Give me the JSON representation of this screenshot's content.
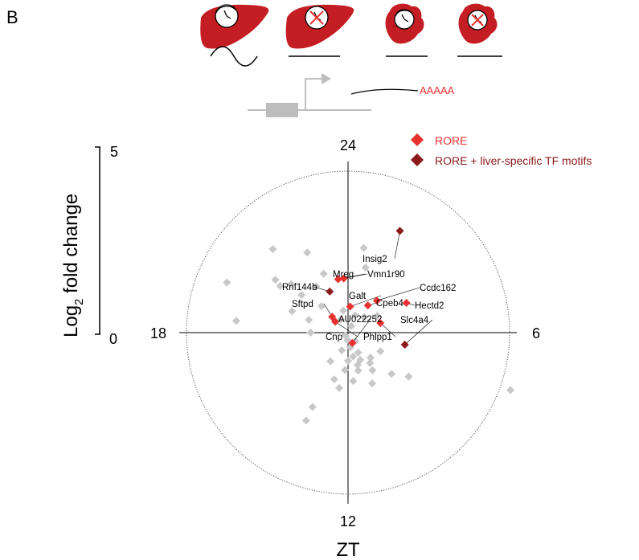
{
  "panel_label": "B",
  "schematic": {
    "transcript_tail": "AAAAA"
  },
  "colors": {
    "rore": "#e8312f",
    "rore_liver": "#8b1a1a",
    "other": "#c8c8c8",
    "organ": "#c41e24"
  },
  "chart_data": {
    "type": "scatter",
    "coordinate_system": "polar",
    "angular_axis": {
      "label": "ZT",
      "ticks": [
        "24",
        "6",
        "12",
        "18"
      ],
      "direction": "clockwise",
      "zero_at": "top"
    },
    "radial_axis": {
      "label_pre": "Log",
      "label_sub": "2",
      "label_post": " fold change",
      "range": [
        0,
        5
      ],
      "tick_labels": [
        "5",
        "0"
      ]
    },
    "legend": {
      "placement": "top-right",
      "entries": [
        {
          "label": "RORE",
          "color": "#e8312f"
        },
        {
          "label": "RORE + liver-specific TF motifs",
          "color": "#8b1a1a"
        }
      ]
    },
    "series": [
      {
        "name": "RORE",
        "points": [
          {
            "gene": "Vmn1r90",
            "zt": 23.7,
            "lfc": 1.45
          },
          {
            "gene": "Mreg",
            "zt": 23.3,
            "lfc": 1.45
          },
          {
            "gene": "Ccdc162",
            "zt": 2.8,
            "lfc": 1.15
          },
          {
            "gene": "Cpeb4",
            "zt": 2.4,
            "lfc": 0.9
          },
          {
            "gene": "Hectd2",
            "zt": 4.2,
            "lfc": 1.75
          },
          {
            "gene": "Galt",
            "zt": 0.3,
            "lfc": 0.7
          },
          {
            "gene": "Sftpd",
            "zt": 21.0,
            "lfc": 0.6
          },
          {
            "gene": "AU022252",
            "zt": 10.5,
            "lfc": 0.3
          },
          {
            "gene": "Cnp",
            "zt": 20.7,
            "lfc": 0.45
          },
          {
            "gene": "Phlpp1",
            "zt": 4.9,
            "lfc": 0.9
          }
        ]
      },
      {
        "name": "RORE + liver-specific TF motifs",
        "points": [
          {
            "gene": "Insig2",
            "zt": 1.8,
            "lfc": 3.05
          },
          {
            "gene": "Rnf144b",
            "zt": 22.4,
            "lfc": 1.2
          },
          {
            "gene": "Slc4a4",
            "zt": 6.8,
            "lfc": 1.55
          }
        ]
      },
      {
        "name": "other",
        "points": [
          {
            "zt": 21.2,
            "lfc": 3.0
          },
          {
            "zt": 20.3,
            "lfc": 2.2
          },
          {
            "zt": 20.7,
            "lfc": 2.0
          },
          {
            "zt": 19.5,
            "lfc": 3.5
          },
          {
            "zt": 18.4,
            "lfc": 3.0
          },
          {
            "zt": 20.4,
            "lfc": 2.4
          },
          {
            "zt": 18.0,
            "lfc": 1.0
          },
          {
            "zt": 19.4,
            "lfc": 1.6
          },
          {
            "zt": 22.2,
            "lfc": 2.4
          },
          {
            "zt": 21.0,
            "lfc": 1.0
          },
          {
            "zt": 0.7,
            "lfc": 2.3
          },
          {
            "zt": 1.0,
            "lfc": 1.8
          },
          {
            "zt": 22.5,
            "lfc": 1.7
          },
          {
            "zt": 21.7,
            "lfc": 1.5
          },
          {
            "zt": 19.2,
            "lfc": 1.1
          },
          {
            "zt": 20.6,
            "lfc": 1.6
          },
          {
            "zt": 23.2,
            "lfc": 0.6
          },
          {
            "zt": 1.5,
            "lfc": 0.5
          },
          {
            "zt": 3.1,
            "lfc": 0.6
          },
          {
            "zt": 4.0,
            "lfc": 0.9
          },
          {
            "zt": 1.8,
            "lfc": 0.2
          },
          {
            "zt": 22.1,
            "lfc": 0.4
          },
          {
            "zt": 15.0,
            "lfc": 0.1
          },
          {
            "zt": 12.3,
            "lfc": 0.2
          },
          {
            "zt": 13.3,
            "lfc": 0.5
          },
          {
            "zt": 11.4,
            "lfc": 0.4
          },
          {
            "zt": 9.3,
            "lfc": 0.3
          },
          {
            "zt": 10.2,
            "lfc": 0.6
          },
          {
            "zt": 11.2,
            "lfc": 0.65
          },
          {
            "zt": 12.0,
            "lfc": 0.75
          },
          {
            "zt": 9.2,
            "lfc": 0.9
          },
          {
            "zt": 10.9,
            "lfc": 0.9
          },
          {
            "zt": 9.8,
            "lfc": 1.2
          },
          {
            "zt": 10.3,
            "lfc": 1.5
          },
          {
            "zt": 8.9,
            "lfc": 1.6
          },
          {
            "zt": 11.0,
            "lfc": 1.05
          },
          {
            "zt": 8.4,
            "lfc": 2.0
          },
          {
            "zt": 13.1,
            "lfc": 1.3
          },
          {
            "zt": 12.6,
            "lfc": 1.5
          },
          {
            "zt": 13.7,
            "lfc": 2.2
          },
          {
            "zt": 13.7,
            "lfc": 2.6
          },
          {
            "zt": 9.6,
            "lfc": 1.0
          },
          {
            "zt": 14.1,
            "lfc": 0.9
          },
          {
            "zt": 12.3,
            "lfc": 1.0
          },
          {
            "zt": 8.0,
            "lfc": 1.0
          },
          {
            "zt": 10.4,
            "lfc": 0.8
          },
          {
            "zt": 7.3,
            "lfc": 4.6
          },
          {
            "zt": 11.6,
            "lfc": 1.3
          }
        ]
      }
    ]
  }
}
